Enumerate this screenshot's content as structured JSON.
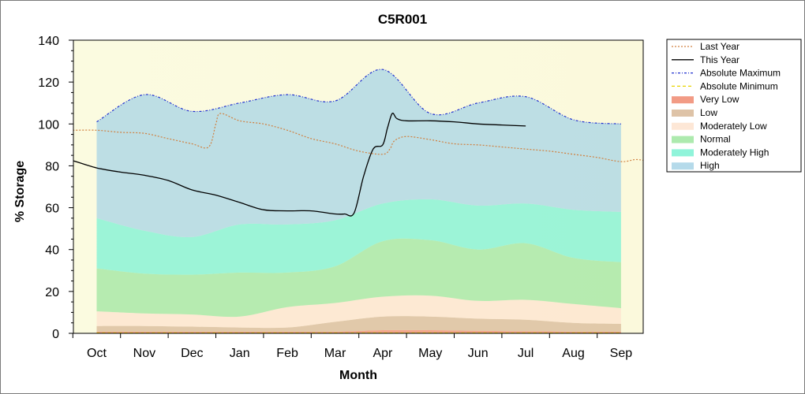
{
  "chart_data": {
    "type": "area",
    "title": "C5R001",
    "xlabel": "Month",
    "ylabel": "% Storage",
    "ylim": [
      0,
      140
    ],
    "yticks": [
      0,
      20,
      40,
      60,
      80,
      100,
      120,
      140
    ],
    "categories": [
      "Oct",
      "Nov",
      "Dec",
      "Jan",
      "Feb",
      "Mar",
      "Apr",
      "May",
      "Jun",
      "Jul",
      "Aug",
      "Sep"
    ],
    "grid": false,
    "legend_position": "right",
    "bands": [
      {
        "name": "Very Low",
        "color": "#f08a70",
        "lower": [
          0,
          0,
          0,
          0,
          0,
          0,
          0,
          0,
          0,
          0,
          0,
          0,
          0
        ],
        "upper": [
          0.8,
          0.8,
          0.8,
          0.8,
          0.8,
          0.8,
          1.5,
          1.5,
          1.2,
          1.0,
          0.8,
          0.7,
          0.7
        ]
      },
      {
        "name": "Low",
        "color": "#d8b898",
        "lower": [
          0.8,
          0.8,
          0.8,
          0.8,
          0.8,
          0.8,
          1.5,
          1.5,
          1.2,
          1.0,
          0.8,
          0.7,
          0.7
        ],
        "upper": [
          3.5,
          3.5,
          3.2,
          2.8,
          2.8,
          5.5,
          8.0,
          8.0,
          7.0,
          6.5,
          5.0,
          4.5,
          4.5
        ]
      },
      {
        "name": "Moderately Low",
        "color": "#fde3cf",
        "lower": [
          3.5,
          3.5,
          3.2,
          2.8,
          2.8,
          5.5,
          8.0,
          8.0,
          7.0,
          6.5,
          5.0,
          4.5,
          4.5
        ],
        "upper": [
          10.5,
          9.5,
          9.0,
          8.0,
          12.5,
          14.5,
          17.5,
          18.0,
          15.5,
          16.0,
          14.0,
          12.0,
          12.0
        ]
      },
      {
        "name": "Normal",
        "color": "#9fe6a0",
        "lower": [
          10.5,
          9.5,
          9.0,
          8.0,
          12.5,
          14.5,
          17.5,
          18.0,
          15.5,
          16.0,
          14.0,
          12.0,
          12.0
        ],
        "upper": [
          31.0,
          28.5,
          28.0,
          29.0,
          29.0,
          32.0,
          44.0,
          44.5,
          40.0,
          43.0,
          36.0,
          34.0,
          34.0
        ]
      },
      {
        "name": "Moderately High",
        "color": "#7cf2d4",
        "lower": [
          31.0,
          28.5,
          28.0,
          29.0,
          29.0,
          32.0,
          44.0,
          44.5,
          40.0,
          43.0,
          36.0,
          34.0,
          34.0
        ],
        "upper": [
          55.0,
          49.0,
          46.0,
          52.0,
          52.0,
          54.0,
          62.0,
          64.0,
          61.0,
          62.0,
          59.0,
          58.0,
          58.0
        ]
      },
      {
        "name": "High",
        "color": "#a8d4e6",
        "lower": [
          55.0,
          49.0,
          46.0,
          52.0,
          52.0,
          54.0,
          62.0,
          64.0,
          61.0,
          62.0,
          59.0,
          58.0,
          58.0
        ],
        "upper": [
          101.0,
          114.0,
          106.0,
          110.0,
          114.0,
          111.0,
          126.0,
          105.0,
          110.0,
          113.0,
          102.0,
          100.0,
          100.0
        ]
      }
    ],
    "band_x": [
      0,
      1,
      2,
      3,
      4,
      5,
      6,
      7,
      8,
      9,
      10,
      11,
      11
    ],
    "series": [
      {
        "name": "Last Year",
        "color": "#d08040",
        "style": "dotted",
        "x": [
          -0.5,
          0,
          0.5,
          1,
          1.5,
          2.0,
          2.35,
          2.5,
          2.6,
          3.0,
          3.5,
          4.0,
          4.5,
          5.0,
          5.5,
          6.0,
          6.15,
          6.25,
          6.5,
          7.0,
          7.5,
          8.0,
          8.5,
          9.0,
          9.5,
          10.0,
          10.5,
          11.0,
          11.3,
          11.5
        ],
        "y": [
          97,
          97,
          96,
          95.5,
          93,
          90.5,
          89,
          100,
          105,
          101.5,
          100,
          97,
          93,
          90.5,
          87,
          85.5,
          88,
          92,
          94,
          92.5,
          90.5,
          90,
          89,
          88,
          87,
          85.5,
          84,
          82,
          83,
          82.5
        ]
      },
      {
        "name": "This Year",
        "color": "#000000",
        "style": "solid",
        "x": [
          -0.5,
          0,
          0.5,
          1,
          1.5,
          2.0,
          2.5,
          3.0,
          3.5,
          4.0,
          4.5,
          5.0,
          5.2,
          5.4,
          5.6,
          5.8,
          6.0,
          6.1,
          6.2,
          6.3,
          6.5,
          7.0,
          7.5,
          8.0,
          8.5,
          9.0
        ],
        "y": [
          82.5,
          79,
          77,
          75.5,
          73,
          68.5,
          66,
          62.5,
          59,
          58.5,
          58.5,
          57,
          57,
          57.5,
          75,
          88,
          90,
          98,
          105,
          102.5,
          101.5,
          101.5,
          101,
          100,
          99.5,
          99
        ]
      },
      {
        "name": "Absolute Maximum",
        "color": "#2030d0",
        "style": "dashdot",
        "x": [
          0,
          1,
          2,
          3,
          4,
          5,
          6,
          7,
          8,
          9,
          10,
          11
        ],
        "y": [
          101,
          114,
          106,
          110,
          114,
          111,
          126,
          105,
          110,
          113,
          102,
          100
        ]
      },
      {
        "name": "Absolute Minimum",
        "color": "#e8d400",
        "style": "dashed",
        "x": [
          0,
          11
        ],
        "y": [
          0.2,
          0.2
        ]
      }
    ],
    "legend": [
      "Last Year",
      "This Year",
      "Absolute Maximum",
      "Absolute Minimum",
      "Very Low",
      "Low",
      "Moderately Low",
      "Normal",
      "Moderately High",
      "High"
    ]
  }
}
